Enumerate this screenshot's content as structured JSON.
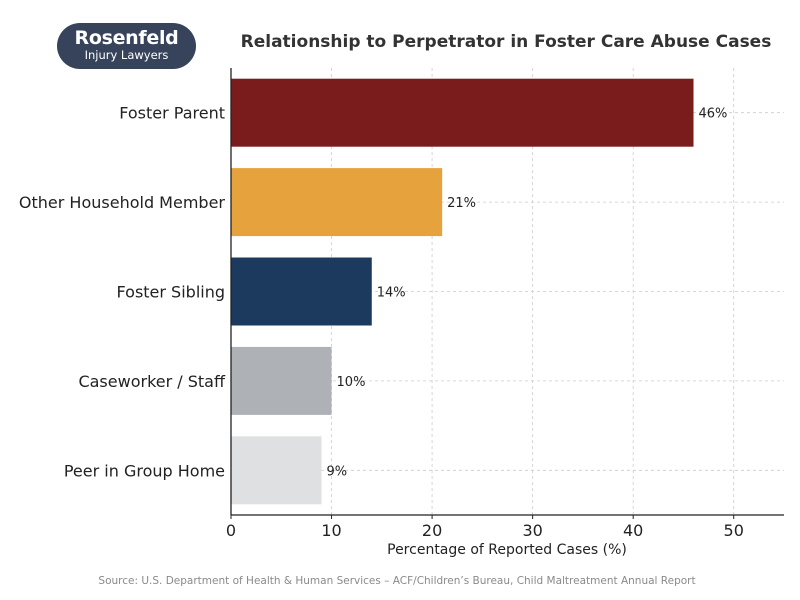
{
  "logo": {
    "name": "Rosenfeld",
    "tagline": "Injury Lawyers"
  },
  "chart_data": {
    "type": "bar",
    "orientation": "horizontal",
    "title": "Relationship to Perpetrator in Foster Care Abuse Cases",
    "xlabel": "Percentage of Reported Cases (%)",
    "ylabel": "",
    "categories": [
      "Foster Parent",
      "Other Household Member",
      "Foster Sibling",
      "Caseworker / Staff",
      "Peer in Group Home"
    ],
    "values": [
      46,
      21,
      14,
      10,
      9
    ],
    "data_labels": [
      "46%",
      "21%",
      "14%",
      "10%",
      "9%"
    ],
    "colors": [
      "#7b1c1c",
      "#e6a23c",
      "#1b3a5e",
      "#aeb2b7",
      "#dfe0e2"
    ],
    "xlim": [
      0,
      55
    ],
    "xticks": [
      0,
      10,
      20,
      30,
      40,
      50
    ],
    "grid": true,
    "source": "Source: U.S. Department of Health & Human Services – ACF/Children’s Bureau, Child Maltreatment Annual Report"
  }
}
